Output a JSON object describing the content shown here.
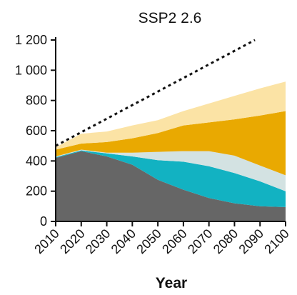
{
  "chart_data": {
    "type": "area",
    "title": "SSP2 2.6",
    "xlabel": "Year",
    "ylabel": "",
    "xlim": [
      2010,
      2100
    ],
    "ylim": [
      0,
      1200
    ],
    "x": [
      2010,
      2020,
      2030,
      2040,
      2050,
      2060,
      2070,
      2080,
      2090,
      2100
    ],
    "x_ticks": [
      "2010",
      "2020",
      "2030",
      "2040",
      "2050",
      "2060",
      "2070",
      "2080",
      "2090",
      "2100"
    ],
    "y_ticks": [
      0,
      200,
      400,
      600,
      800,
      1000,
      1200
    ],
    "y_tick_labels": [
      "0",
      "200",
      "400",
      "600",
      "800",
      "1 000",
      "1 200"
    ],
    "grid": false,
    "legend": "none",
    "stack": [
      {
        "color": "#666666",
        "values": [
          420,
          465,
          430,
          375,
          275,
          210,
          155,
          120,
          100,
          95
        ]
      },
      {
        "color": "#12b2c2",
        "values": [
          5,
          5,
          20,
          55,
          130,
          185,
          210,
          200,
          165,
          105
        ]
      },
      {
        "color": "#d3e2e2",
        "values": [
          5,
          5,
          5,
          25,
          55,
          70,
          100,
          115,
          105,
          105
        ]
      },
      {
        "color": "#e9a901",
        "values": [
          45,
          40,
          70,
          95,
          125,
          170,
          190,
          240,
          330,
          425
        ]
      },
      {
        "color": "#fbe3a5",
        "values": [
          15,
          65,
          70,
          85,
          85,
          95,
          125,
          155,
          180,
          195
        ]
      }
    ],
    "line": {
      "style": "dotted",
      "color": "#111111",
      "x": [
        2010,
        2088
      ],
      "y": [
        500,
        1200
      ]
    }
  }
}
